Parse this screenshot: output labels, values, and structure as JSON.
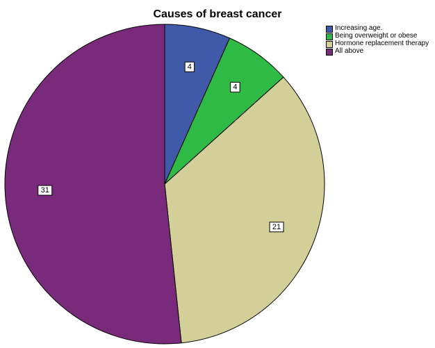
{
  "chart_data": {
    "type": "pie",
    "title": "Causes of breast cancer",
    "start_angle_deg": 0,
    "direction": "clockwise",
    "legend_position": "top-right",
    "slices": [
      {
        "label": "Increasing age.",
        "value": 4,
        "color": "#3f5aa9"
      },
      {
        "label": "Being overweight or obese",
        "value": 4,
        "color": "#2fba45"
      },
      {
        "label": "Hormone replacement therapy",
        "value": 21,
        "color": "#d3cf99"
      },
      {
        "label": "All above",
        "value": 31,
        "color": "#7a2a7b"
      }
    ]
  }
}
